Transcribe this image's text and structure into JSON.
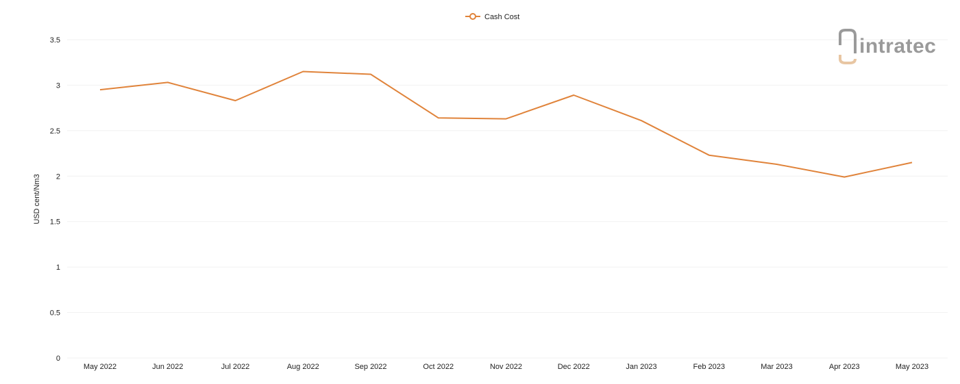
{
  "chart_data": {
    "type": "line",
    "categories": [
      "May 2022",
      "Jun 2022",
      "Jul 2022",
      "Aug 2022",
      "Sep 2022",
      "Oct 2022",
      "Nov 2022",
      "Dec 2022",
      "Jan 2023",
      "Feb 2023",
      "Mar 2023",
      "Apr 2023",
      "May 2023"
    ],
    "series": [
      {
        "name": "Cash Cost",
        "color": "#e0833a",
        "values": [
          2.95,
          3.03,
          2.83,
          3.15,
          3.12,
          2.64,
          2.63,
          2.89,
          2.61,
          2.23,
          2.13,
          1.99,
          2.15
        ]
      }
    ],
    "ylabel": "USD cent/Nm3",
    "xlabel": "",
    "ylim": [
      0,
      3.5
    ],
    "yticks": [
      "0",
      "0.5",
      "1",
      "1.5",
      "2",
      "2.5",
      "3",
      "3.5"
    ],
    "grid": true,
    "legend_position": "top-center"
  },
  "logo": {
    "text": "intratec",
    "accent": "#e8c6a3",
    "color": "#9a9a9a"
  }
}
